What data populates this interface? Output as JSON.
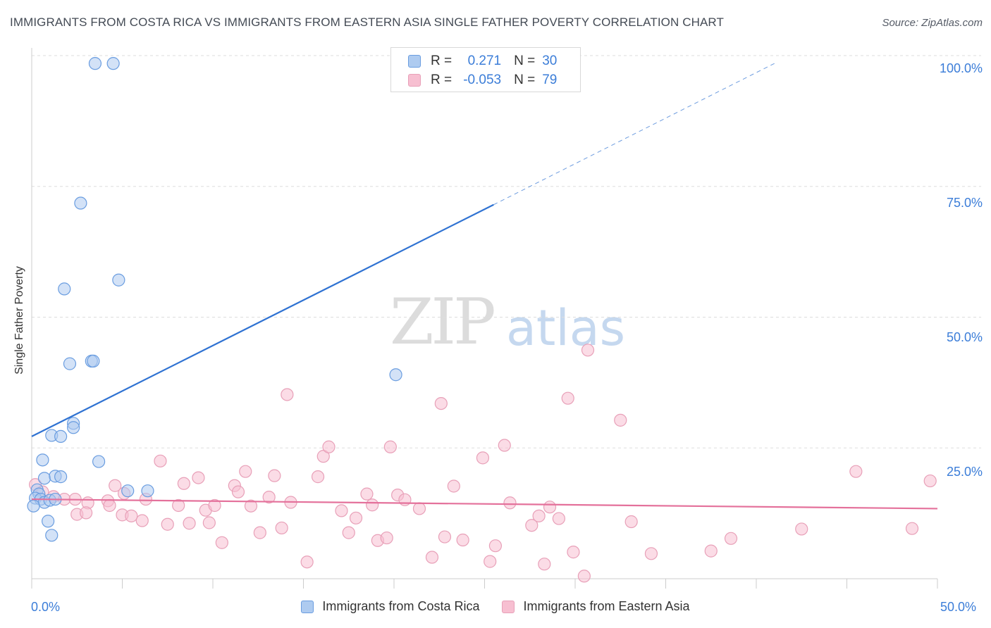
{
  "title": "IMMIGRANTS FROM COSTA RICA VS IMMIGRANTS FROM EASTERN ASIA SINGLE FATHER POVERTY CORRELATION CHART",
  "source": "Source: ZipAtlas.com",
  "watermark": {
    "zip": "ZIP",
    "atlas": "atlas"
  },
  "legend": {
    "r_label": "R =",
    "n_label": "N =",
    "series1": {
      "r": "0.271",
      "n": "30"
    },
    "series2": {
      "r": "-0.053",
      "n": "79"
    }
  },
  "colors": {
    "blue_fill": "#aecbf0",
    "blue_stroke": "#6a9de0",
    "blue_line": "#2f72d2",
    "pink_fill": "#f7bfd1",
    "pink_stroke": "#e8a0b8",
    "pink_line": "#e4719b",
    "tick_text": "#3b7dd8"
  },
  "chart_data": {
    "type": "scatter",
    "title": "IMMIGRANTS FROM COSTA RICA VS IMMIGRANTS FROM EASTERN ASIA SINGLE FATHER POVERTY CORRELATION CHART",
    "xlabel": "",
    "ylabel": "Single Father Poverty",
    "xlim": [
      0,
      50
    ],
    "ylim": [
      0,
      100
    ],
    "x_tick_labels": [
      "0.0%",
      "50.0%"
    ],
    "y_tick_labels": [
      "100.0%",
      "75.0%",
      "50.0%",
      "25.0%"
    ],
    "y_ticks": [
      100,
      75,
      50,
      25
    ],
    "grid": true,
    "series": [
      {
        "name": "Immigrants from Costa Rica",
        "r": 0.271,
        "n": 30,
        "trend": {
          "x0": 0,
          "y0": 27.2,
          "x1": 25.5,
          "y1": 71.5,
          "dashed_to_x": 41,
          "dashed_to_y": 98.5
        },
        "points": [
          [
            3.5,
            98.5
          ],
          [
            4.5,
            98.5
          ],
          [
            2.7,
            71.8
          ],
          [
            1.8,
            55.4
          ],
          [
            4.8,
            57.1
          ],
          [
            2.1,
            41.1
          ],
          [
            3.3,
            41.6
          ],
          [
            3.4,
            41.6
          ],
          [
            20.1,
            39.0
          ],
          [
            2.3,
            29.7
          ],
          [
            2.3,
            28.9
          ],
          [
            1.1,
            27.4
          ],
          [
            1.6,
            27.2
          ],
          [
            0.6,
            22.7
          ],
          [
            3.7,
            22.4
          ],
          [
            0.7,
            19.2
          ],
          [
            1.3,
            19.6
          ],
          [
            1.6,
            19.5
          ],
          [
            5.3,
            16.8
          ],
          [
            6.4,
            16.8
          ],
          [
            0.3,
            17.0
          ],
          [
            0.4,
            16.2
          ],
          [
            0.2,
            15.4
          ],
          [
            0.5,
            15.2
          ],
          [
            0.7,
            14.6
          ],
          [
            1.0,
            15.0
          ],
          [
            1.3,
            15.2
          ],
          [
            0.1,
            13.9
          ],
          [
            0.9,
            11.0
          ],
          [
            1.1,
            8.3
          ]
        ]
      },
      {
        "name": "Immigrants from Eastern Asia",
        "r": -0.053,
        "n": 79,
        "trend": {
          "x0": 0,
          "y0": 15.2,
          "x1": 50,
          "y1": 13.4
        },
        "points": [
          [
            0.2,
            18.0
          ],
          [
            0.6,
            16.6
          ],
          [
            1.2,
            15.7
          ],
          [
            1.8,
            15.2
          ],
          [
            2.4,
            15.2
          ],
          [
            3.1,
            14.5
          ],
          [
            4.2,
            14.9
          ],
          [
            5.1,
            16.3
          ],
          [
            2.5,
            12.3
          ],
          [
            3.0,
            12.6
          ],
          [
            4.3,
            14.0
          ],
          [
            4.6,
            17.8
          ],
          [
            5.0,
            12.2
          ],
          [
            5.5,
            12.0
          ],
          [
            6.1,
            11.1
          ],
          [
            6.3,
            15.2
          ],
          [
            7.1,
            22.5
          ],
          [
            7.5,
            10.4
          ],
          [
            8.1,
            14.0
          ],
          [
            8.4,
            18.2
          ],
          [
            8.7,
            10.6
          ],
          [
            9.2,
            19.3
          ],
          [
            9.6,
            13.1
          ],
          [
            9.8,
            10.7
          ],
          [
            10.1,
            14.0
          ],
          [
            10.5,
            6.9
          ],
          [
            11.2,
            17.8
          ],
          [
            11.4,
            16.6
          ],
          [
            11.8,
            20.5
          ],
          [
            12.1,
            13.9
          ],
          [
            12.6,
            8.8
          ],
          [
            13.1,
            15.6
          ],
          [
            13.4,
            19.7
          ],
          [
            13.8,
            9.7
          ],
          [
            14.1,
            35.2
          ],
          [
            14.3,
            14.6
          ],
          [
            15.2,
            3.2
          ],
          [
            15.8,
            19.5
          ],
          [
            16.1,
            23.4
          ],
          [
            16.4,
            25.2
          ],
          [
            17.1,
            13.0
          ],
          [
            17.5,
            8.8
          ],
          [
            17.9,
            11.6
          ],
          [
            18.5,
            16.2
          ],
          [
            18.8,
            14.1
          ],
          [
            19.1,
            7.3
          ],
          [
            19.6,
            7.8
          ],
          [
            19.8,
            25.2
          ],
          [
            20.2,
            16.0
          ],
          [
            20.6,
            15.1
          ],
          [
            21.4,
            13.4
          ],
          [
            22.1,
            4.1
          ],
          [
            22.6,
            33.5
          ],
          [
            22.8,
            8.0
          ],
          [
            23.3,
            17.7
          ],
          [
            23.8,
            7.4
          ],
          [
            24.9,
            23.1
          ],
          [
            25.3,
            3.3
          ],
          [
            25.6,
            6.3
          ],
          [
            26.1,
            25.5
          ],
          [
            26.4,
            14.5
          ],
          [
            27.6,
            10.2
          ],
          [
            28.0,
            12.0
          ],
          [
            28.3,
            2.8
          ],
          [
            28.6,
            13.7
          ],
          [
            29.1,
            11.5
          ],
          [
            29.6,
            34.5
          ],
          [
            29.9,
            5.1
          ],
          [
            30.5,
            0.5
          ],
          [
            30.7,
            43.7
          ],
          [
            32.5,
            30.3
          ],
          [
            33.1,
            10.9
          ],
          [
            34.2,
            4.8
          ],
          [
            37.5,
            5.3
          ],
          [
            38.6,
            7.7
          ],
          [
            42.5,
            9.5
          ],
          [
            45.5,
            20.5
          ],
          [
            48.6,
            9.6
          ],
          [
            49.6,
            18.7
          ]
        ]
      }
    ]
  },
  "bottom_legend": {
    "item1": "Immigrants from Costa Rica",
    "item2": "Immigrants from Eastern Asia"
  }
}
